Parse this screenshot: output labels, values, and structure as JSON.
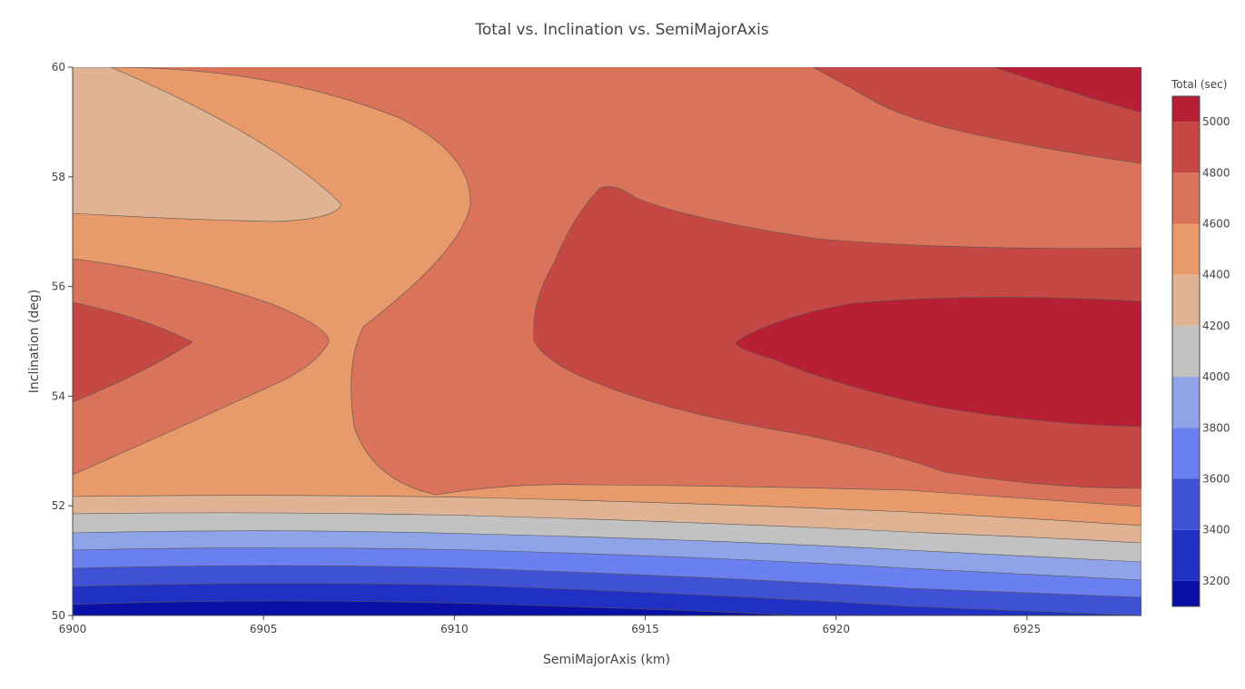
{
  "chart_data": {
    "type": "contour",
    "title": "Total vs. Inclination vs. SemiMajorAxis",
    "xlabel": "SemiMajorAxis (km)",
    "ylabel": "Inclination (deg)",
    "xlim": [
      6900,
      6928
    ],
    "ylim": [
      50,
      60
    ],
    "x_ticks": [
      "6900",
      "6905",
      "6910",
      "6915",
      "6920",
      "6925"
    ],
    "y_ticks": [
      "50",
      "52",
      "54",
      "56",
      "58",
      "60"
    ],
    "colorbar": {
      "title": "Total (sec)",
      "range": [
        3100,
        5100
      ],
      "ticks": [
        "3200",
        "3400",
        "3600",
        "3800",
        "4000",
        "4200",
        "4400",
        "4600",
        "4800",
        "5000"
      ],
      "levels": [
        {
          "from": 3100,
          "to": 3200,
          "color": "#0a0fa6"
        },
        {
          "from": 3200,
          "to": 3400,
          "color": "#2030c2"
        },
        {
          "from": 3400,
          "to": 3600,
          "color": "#3f52d6"
        },
        {
          "from": 3600,
          "to": 3800,
          "color": "#6a7ff0"
        },
        {
          "from": 3800,
          "to": 4000,
          "color": "#8fa3e8"
        },
        {
          "from": 4000,
          "to": 4200,
          "color": "#c2c2c2"
        },
        {
          "from": 4200,
          "to": 4400,
          "color": "#dfb393"
        },
        {
          "from": 4400,
          "to": 4600,
          "color": "#e89a6a"
        },
        {
          "from": 4600,
          "to": 4800,
          "color": "#d9735a"
        },
        {
          "from": 4800,
          "to": 5000,
          "color": "#c64844"
        },
        {
          "from": 5000,
          "to": 5100,
          "color": "#b71f34"
        }
      ]
    },
    "grid": false,
    "legend": "colorbar-right"
  }
}
